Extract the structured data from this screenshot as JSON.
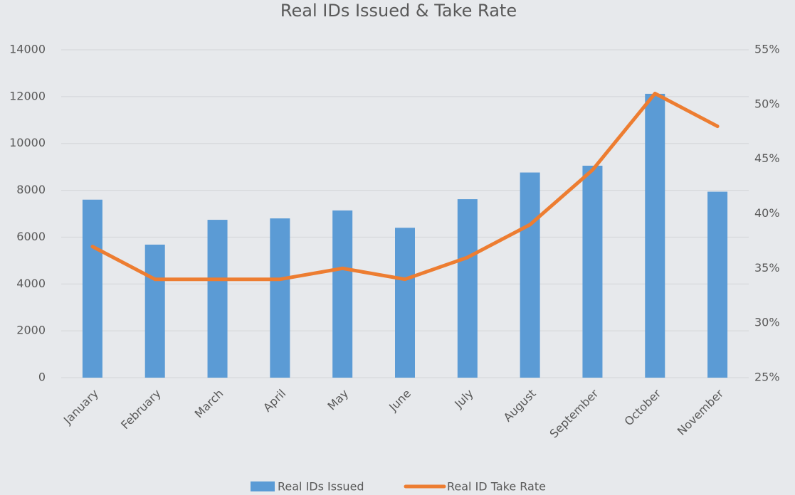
{
  "chart_data": {
    "type": "bar-line",
    "title": "Real IDs Issued & Take Rate",
    "categories": [
      "January",
      "February",
      "March",
      "April",
      "May",
      "June",
      "July",
      "August",
      "September",
      "October",
      "November"
    ],
    "series": [
      {
        "name": "Real IDs Issued",
        "type": "bar",
        "color": "#5b9bd5",
        "values": [
          7600,
          5680,
          6740,
          6800,
          7140,
          6400,
          7620,
          8760,
          9050,
          12120,
          7940
        ]
      },
      {
        "name": "Real ID Take Rate",
        "type": "line",
        "axis": "y2",
        "color": "#ed7d31",
        "values": [
          37,
          34,
          34,
          34,
          35,
          34,
          36,
          39,
          44,
          51,
          48
        ]
      }
    ],
    "ylim": [
      0,
      14000
    ],
    "yticks": [
      0,
      2000,
      4000,
      6000,
      8000,
      10000,
      12000,
      14000
    ],
    "y2lim": [
      25,
      55
    ],
    "y2ticks": [
      {
        "value": 25,
        "label": "25%"
      },
      {
        "value": 30,
        "label": "30%"
      },
      {
        "value": 35,
        "label": "35%"
      },
      {
        "value": 40,
        "label": "40%"
      },
      {
        "value": 45,
        "label": "45%"
      },
      {
        "value": 50,
        "label": "50%"
      },
      {
        "value": 55,
        "label": "55%"
      }
    ],
    "grid": true,
    "legend": "bottom"
  }
}
